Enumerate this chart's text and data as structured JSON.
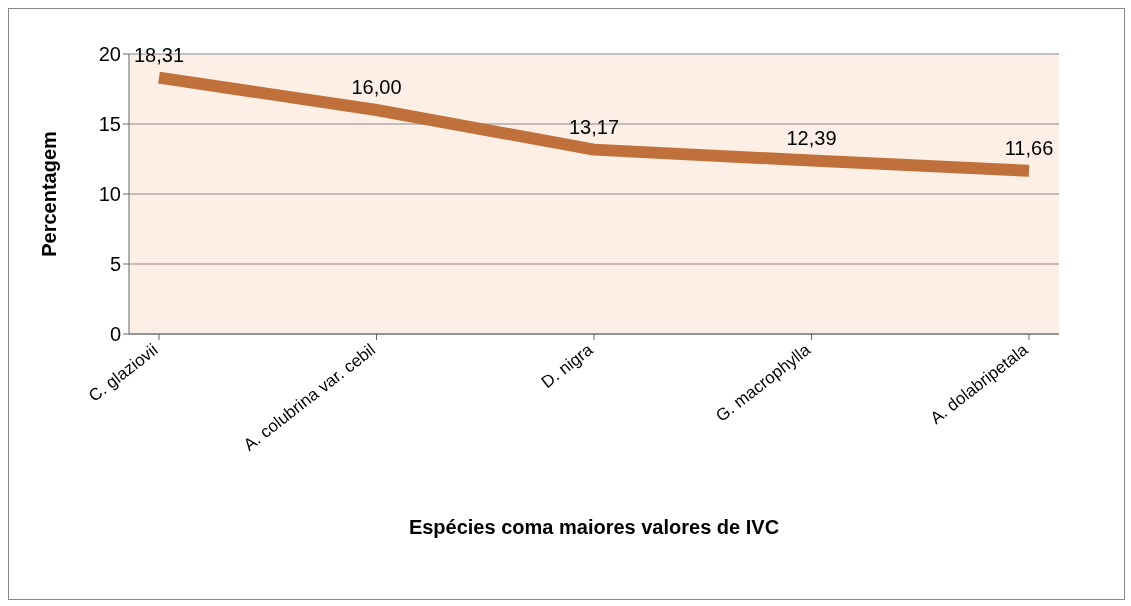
{
  "chart_data": {
    "type": "line",
    "xlabel": "Espécies coma maiores valores de IVC",
    "ylabel": "Percentagem",
    "categories": [
      "C. glaziovii",
      "A. colubrina var. cebil",
      "D. nigra",
      "G. macrophylla",
      "A. dolabripetala"
    ],
    "series": [
      {
        "color": "#c0703a",
        "values": [
          18.31,
          16.0,
          13.17,
          12.39,
          11.66
        ],
        "value_labels": [
          "18,31",
          "16,00",
          "13,17",
          "12,39",
          "11,66"
        ]
      }
    ],
    "ylim": [
      0,
      20
    ],
    "yticks": [
      0,
      5,
      10,
      15,
      20
    ],
    "grid": "y",
    "marker": "none",
    "line_style": "solid"
  }
}
